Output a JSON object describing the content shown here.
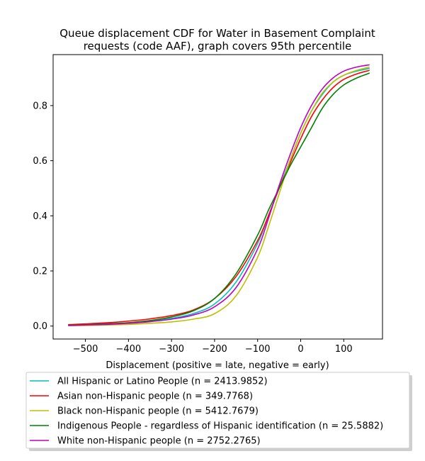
{
  "chart_data": {
    "type": "line",
    "title_lines": [
      "Queue displacement CDF for Water in Basement Complaint",
      "requests (code AAF), graph covers 95th percentile"
    ],
    "xlabel": "Displacement (positive = late, negative = early)",
    "ylabel": "",
    "xlim": [
      -575,
      190
    ],
    "ylim": [
      -0.047,
      0.985
    ],
    "xticks": [
      -500,
      -400,
      -300,
      -200,
      -100,
      0,
      100
    ],
    "xtick_labels": [
      "−500",
      "−400",
      "−300",
      "−200",
      "−100",
      "0",
      "100"
    ],
    "yticks": [
      0.0,
      0.2,
      0.4,
      0.6,
      0.8
    ],
    "ytick_labels": [
      "0.0",
      "0.2",
      "0.4",
      "0.6",
      "0.8"
    ],
    "grid": false,
    "legend_position": "below plot",
    "x": [
      -540,
      -500,
      -450,
      -400,
      -350,
      -300,
      -250,
      -200,
      -150,
      -100,
      -75,
      -50,
      -25,
      0,
      25,
      50,
      75,
      100,
      130,
      160
    ],
    "series": [
      {
        "name": "All Hispanic or Latino People (n = 2413.9852)",
        "color": "#00bfbf",
        "values": [
          0.003,
          0.005,
          0.008,
          0.012,
          0.018,
          0.028,
          0.045,
          0.08,
          0.16,
          0.3,
          0.4,
          0.5,
          0.6,
          0.7,
          0.78,
          0.84,
          0.885,
          0.91,
          0.925,
          0.935
        ]
      },
      {
        "name": "Asian non-Hispanic people (n = 349.7768)",
        "color": "#ff0000",
        "values": [
          0.005,
          0.008,
          0.012,
          0.018,
          0.026,
          0.038,
          0.058,
          0.1,
          0.18,
          0.31,
          0.4,
          0.5,
          0.59,
          0.68,
          0.76,
          0.82,
          0.865,
          0.895,
          0.915,
          0.928
        ]
      },
      {
        "name": "Black non-Hispanic people (n = 5412.7679)",
        "color": "#bfbf00",
        "values": [
          0.001,
          0.002,
          0.004,
          0.006,
          0.01,
          0.015,
          0.025,
          0.045,
          0.11,
          0.25,
          0.36,
          0.48,
          0.6,
          0.7,
          0.78,
          0.845,
          0.885,
          0.91,
          0.928,
          0.94
        ]
      },
      {
        "name": "Indigenous People - regardless of Hispanic identification (n = 25.5882)",
        "color": "#008000",
        "values": [
          0.003,
          0.005,
          0.008,
          0.012,
          0.02,
          0.033,
          0.055,
          0.1,
          0.19,
          0.33,
          0.42,
          0.5,
          0.58,
          0.65,
          0.72,
          0.79,
          0.84,
          0.875,
          0.9,
          0.918
        ]
      },
      {
        "name": "White non-Hispanic people (n = 2752.2765)",
        "color": "#bf00bf",
        "values": [
          0.002,
          0.004,
          0.006,
          0.01,
          0.016,
          0.025,
          0.04,
          0.07,
          0.14,
          0.28,
          0.39,
          0.51,
          0.62,
          0.72,
          0.8,
          0.86,
          0.9,
          0.925,
          0.94,
          0.948
        ]
      }
    ]
  }
}
